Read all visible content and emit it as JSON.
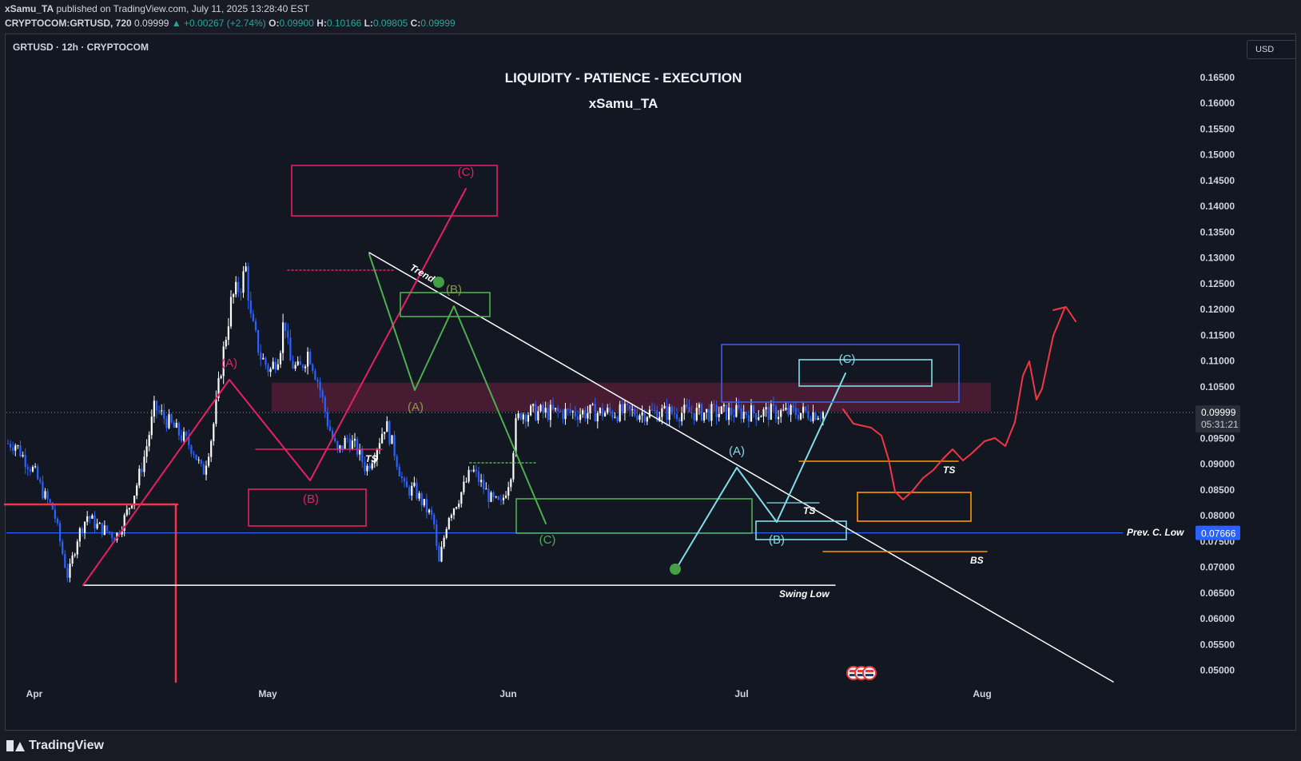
{
  "header": {
    "publisher": "xSamu_TA",
    "published_text": "published on TradingView.com, July 11, 2025 13:28:40 EST",
    "symbol_full": "CRYPTOCOM:GRTUSD, 720",
    "last": "0.09999",
    "change": "+0.00267 (+2.74%)",
    "open_label": "O:",
    "open": "0.09900",
    "high_label": "H:",
    "high": "0.10166",
    "low_label": "L:",
    "low": "0.09805",
    "close_label": "C:",
    "close": "0.09999"
  },
  "chart_header": {
    "symbol": "GRTUSD · 12h · CRYPTOCOM",
    "currency": "USD"
  },
  "titles": {
    "line1": "LIQUIDITY - PATIENCE - EXECUTION",
    "line2": "xSamu_TA"
  },
  "footer": {
    "brand": "TradingView"
  },
  "chart_data": {
    "type": "candlestick",
    "y_axis": {
      "ticks": [
        "0.16500",
        "0.16000",
        "0.15500",
        "0.15000",
        "0.14500",
        "0.14000",
        "0.13500",
        "0.13000",
        "0.12500",
        "0.12000",
        "0.11500",
        "0.11000",
        "0.10500",
        "0.10000",
        "0.09500",
        "0.09000",
        "0.08500",
        "0.08000",
        "0.07500",
        "0.07000",
        "0.06500",
        "0.06000",
        "0.05500",
        "0.05000"
      ],
      "range": [
        0.0485,
        0.1675
      ]
    },
    "x_axis": {
      "ticks": [
        "Apr",
        "May",
        "Jun",
        "Jul",
        "Aug"
      ]
    },
    "price_labels": {
      "current": "0.09999",
      "countdown": "05:31:21",
      "prev_low": "0.07666"
    },
    "levels": [
      {
        "name": "Prev. C. Low",
        "value": 0.07666,
        "color": "#2962ff"
      },
      {
        "name": "Swing Low",
        "value": 0.0665,
        "color": "#ffffff"
      }
    ],
    "supply_zone": [
      0.1002,
      0.1058
    ],
    "wave_labels_pink": [
      "(A)",
      "(B)",
      "(C)"
    ],
    "wave_labels_green": [
      "(A)",
      "(B)",
      "(C)"
    ],
    "wave_labels_cyan": [
      "(A)",
      "(B)",
      "(C)"
    ],
    "annotations": [
      "Trend",
      "TS",
      "TS",
      "TS",
      "BS"
    ],
    "candle_colors": {
      "up": "#ffffff",
      "down": "#2962ff"
    },
    "series": [
      {
        "date": "Mar 28",
        "close": 0.094
      },
      {
        "date": "Mar 30",
        "close": 0.091
      },
      {
        "date": "Apr 1",
        "close": 0.0885
      },
      {
        "date": "Apr 3",
        "close": 0.084
      },
      {
        "date": "Apr 5",
        "close": 0.081
      },
      {
        "date": "Apr 7",
        "close": 0.072
      },
      {
        "date": "Apr 8",
        "close": 0.068
      },
      {
        "date": "Apr 10",
        "close": 0.076
      },
      {
        "date": "Apr 12",
        "close": 0.08
      },
      {
        "date": "Apr 14",
        "close": 0.078
      },
      {
        "date": "Apr 16",
        "close": 0.077
      },
      {
        "date": "Apr 18",
        "close": 0.076
      },
      {
        "date": "Apr 20",
        "close": 0.08
      },
      {
        "date": "Apr 22",
        "close": 0.085
      },
      {
        "date": "Apr 24",
        "close": 0.092
      },
      {
        "date": "Apr 26",
        "close": 0.101
      },
      {
        "date": "Apr 28",
        "close": 0.099
      },
      {
        "date": "Apr 30",
        "close": 0.097
      },
      {
        "date": "May 2",
        "close": 0.095
      },
      {
        "date": "May 4",
        "close": 0.093
      },
      {
        "date": "May 6",
        "close": 0.088
      },
      {
        "date": "May 8",
        "close": 0.096
      },
      {
        "date": "May 10",
        "close": 0.11
      },
      {
        "date": "May 12",
        "close": 0.122
      },
      {
        "date": "May 14",
        "close": 0.125
      },
      {
        "date": "May 15",
        "close": 0.128
      },
      {
        "date": "May 16",
        "close": 0.118
      },
      {
        "date": "May 18",
        "close": 0.111
      },
      {
        "date": "May 20",
        "close": 0.108
      },
      {
        "date": "May 22",
        "close": 0.112
      },
      {
        "date": "May 23",
        "close": 0.119
      },
      {
        "date": "May 24",
        "close": 0.11
      },
      {
        "date": "May 26",
        "close": 0.108
      },
      {
        "date": "May 28",
        "close": 0.112
      },
      {
        "date": "May 30",
        "close": 0.106
      },
      {
        "date": "Jun 1",
        "close": 0.098
      },
      {
        "date": "Jun 3",
        "close": 0.092
      },
      {
        "date": "Jun 5",
        "close": 0.095
      },
      {
        "date": "Jun 7",
        "close": 0.093
      },
      {
        "date": "Jun 9",
        "close": 0.089
      },
      {
        "date": "Jun 11",
        "close": 0.093
      },
      {
        "date": "Jun 13",
        "close": 0.098
      },
      {
        "date": "Jun 15",
        "close": 0.092
      },
      {
        "date": "Jun 17",
        "close": 0.085
      },
      {
        "date": "Jun 19",
        "close": 0.085
      },
      {
        "date": "Jun 21",
        "close": 0.082
      },
      {
        "date": "Jun 23",
        "close": 0.079
      },
      {
        "date": "Jun 24",
        "close": 0.07
      },
      {
        "date": "Jun 26",
        "close": 0.08
      },
      {
        "date": "Jun 28",
        "close": 0.083
      },
      {
        "date": "Jun 30",
        "close": 0.087
      },
      {
        "date": "Jul 1",
        "close": 0.089
      },
      {
        "date": "Jul 3",
        "close": 0.086
      },
      {
        "date": "Jul 5",
        "close": 0.083
      },
      {
        "date": "Jul 7",
        "close": 0.082
      },
      {
        "date": "Jul 9",
        "close": 0.088
      },
      {
        "date": "Jul 10",
        "close": 0.0973
      },
      {
        "date": "Jul 11",
        "close": 0.09999
      }
    ]
  }
}
